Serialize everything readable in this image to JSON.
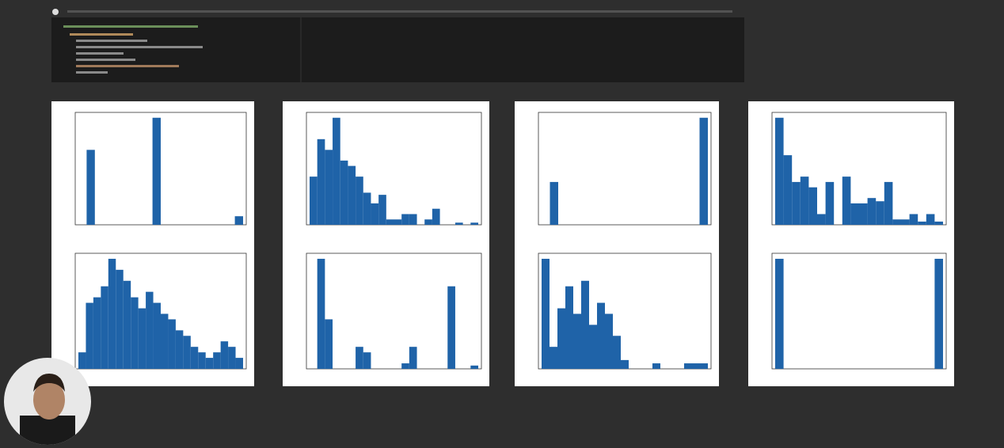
{
  "chart_data": [
    {
      "type": "bar",
      "color": "#1f63a8",
      "ylim": [
        0,
        105
      ],
      "values": [
        0,
        70,
        0,
        0,
        0,
        0,
        0,
        0,
        0,
        100,
        0,
        0,
        0,
        0,
        0,
        0,
        0,
        0,
        0,
        8
      ]
    },
    {
      "type": "bar",
      "color": "#1f63a8",
      "ylim": [
        0,
        105
      ],
      "values": [
        45,
        80,
        70,
        100,
        60,
        55,
        45,
        30,
        20,
        28,
        5,
        5,
        10,
        10,
        0,
        5,
        15,
        0,
        0,
        2,
        0,
        2
      ]
    },
    {
      "type": "bar",
      "color": "#1f63a8",
      "ylim": [
        0,
        105
      ],
      "values": [
        0,
        40,
        0,
        0,
        0,
        0,
        0,
        0,
        0,
        0,
        0,
        0,
        0,
        0,
        0,
        0,
        0,
        0,
        0,
        100
      ]
    },
    {
      "type": "bar",
      "color": "#1f63a8",
      "ylim": [
        0,
        105
      ],
      "values": [
        100,
        65,
        40,
        45,
        35,
        10,
        40,
        0,
        45,
        20,
        20,
        25,
        22,
        40,
        5,
        5,
        10,
        3,
        10,
        3
      ]
    },
    {
      "type": "bar",
      "color": "#1f63a8",
      "ylim": [
        0,
        105
      ],
      "values": [
        15,
        60,
        65,
        75,
        100,
        90,
        80,
        65,
        55,
        70,
        60,
        50,
        45,
        35,
        30,
        20,
        15,
        10,
        15,
        25,
        20,
        10
      ]
    },
    {
      "type": "bar",
      "color": "#1f63a8",
      "ylim": [
        0,
        105
      ],
      "values": [
        0,
        100,
        45,
        0,
        0,
        0,
        20,
        15,
        0,
        0,
        0,
        0,
        5,
        20,
        0,
        0,
        0,
        0,
        75,
        0,
        0,
        3
      ]
    },
    {
      "type": "bar",
      "color": "#1f63a8",
      "ylim": [
        0,
        105
      ],
      "values": [
        100,
        20,
        55,
        75,
        50,
        80,
        40,
        60,
        50,
        30,
        8,
        0,
        0,
        0,
        5,
        0,
        0,
        0,
        5,
        5,
        5
      ]
    },
    {
      "type": "bar",
      "color": "#1f63a8",
      "ylim": [
        0,
        105
      ],
      "values": [
        100,
        0,
        0,
        0,
        0,
        0,
        0,
        0,
        0,
        0,
        0,
        0,
        0,
        0,
        0,
        0,
        0,
        0,
        0,
        100
      ]
    }
  ]
}
